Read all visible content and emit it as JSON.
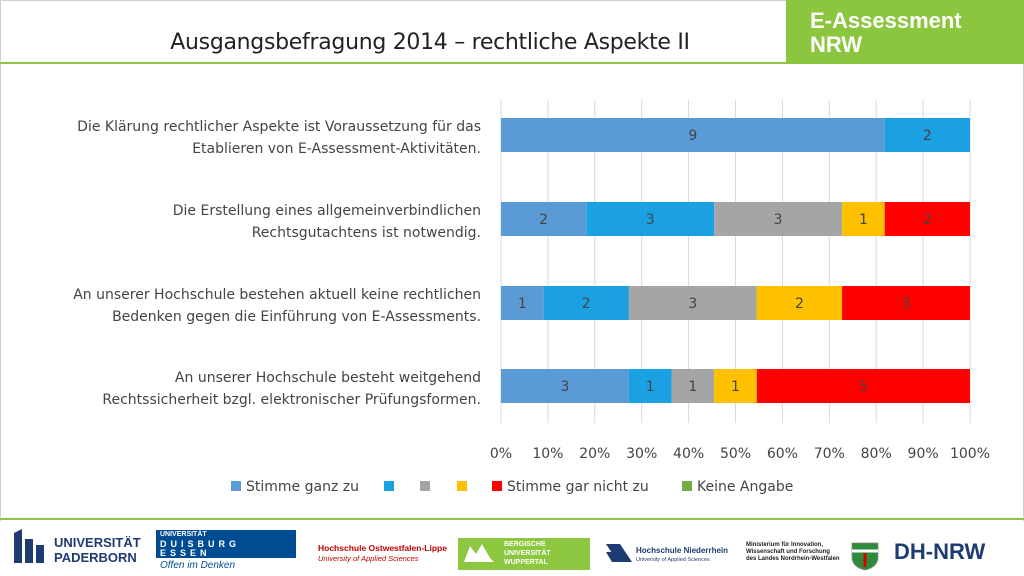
{
  "header": {
    "title": "Ausgangsbefragung 2014 – rechtliche Aspekte II",
    "brand_line1": "E-Assessment",
    "brand_line2": "NRW"
  },
  "colors": {
    "accent_green": "#8cc63f"
  },
  "chart_data": {
    "type": "bar",
    "orientation": "horizontal",
    "stacked_percent": true,
    "categories": [
      [
        "Die Klärung rechtlicher Aspekte ist Voraussetzung für das",
        "Etablieren von E-Assessment-Aktivitäten."
      ],
      [
        "Die Erstellung eines allgemeinverbindlichen",
        "Rechtsgutachtens ist notwendig."
      ],
      [
        "An unserer Hochschule bestehen aktuell keine rechtlichen",
        "Bedenken gegen die Einführung von E-Assessments."
      ],
      [
        "An unserer Hochschule besteht weitgehend",
        "Rechtssicherheit bzgl. elektronischer Prüfungsformen."
      ]
    ],
    "series": [
      {
        "name": "Stimme ganz zu",
        "color": "#5b9bd5",
        "values": [
          9,
          2,
          1,
          3
        ]
      },
      {
        "name": "",
        "color": "#1ba1e2",
        "values": [
          2,
          3,
          2,
          1
        ]
      },
      {
        "name": "",
        "color": "#a5a5a5",
        "values": [
          0,
          3,
          3,
          1
        ]
      },
      {
        "name": "",
        "color": "#ffc000",
        "values": [
          0,
          1,
          2,
          1
        ]
      },
      {
        "name": "Stimme gar nicht zu",
        "color": "#ff0000",
        "values": [
          0,
          2,
          3,
          5
        ]
      },
      {
        "name": "Keine Angabe",
        "color": "#70ad47",
        "values": [
          0,
          0,
          0,
          0
        ]
      }
    ],
    "xticks": [
      "0%",
      "10%",
      "20%",
      "30%",
      "40%",
      "50%",
      "60%",
      "70%",
      "80%",
      "90%",
      "100%"
    ],
    "xlim": [
      0,
      100
    ],
    "grid": true,
    "legend_position": "bottom"
  },
  "footer": {
    "logos": {
      "paderborn_1": "UNIVERSITÄT",
      "paderborn_2": "PADERBORN",
      "due_1": "UNIVERSITÄT",
      "due_2": "DUISBURG",
      "due_3": "ESSEN",
      "due_4": "Offen im Denken",
      "owl_1": "Hochschule Ostwestfalen-Lippe",
      "owl_2": "University of Applied Sciences",
      "wup_1": "BERGISCHE",
      "wup_2": "UNIVERSITÄT",
      "wup_3": "WUPPERTAL",
      "hsnr_1": "Hochschule Niederrhein",
      "hsnr_2": "University of Applied Sciences",
      "min_1": "Ministerium für Innovation,",
      "min_2": "Wissenschaft und Forschung",
      "min_3": "des Landes Nordrhein-Westfalen",
      "dhnrw": "DH-NRW"
    }
  }
}
